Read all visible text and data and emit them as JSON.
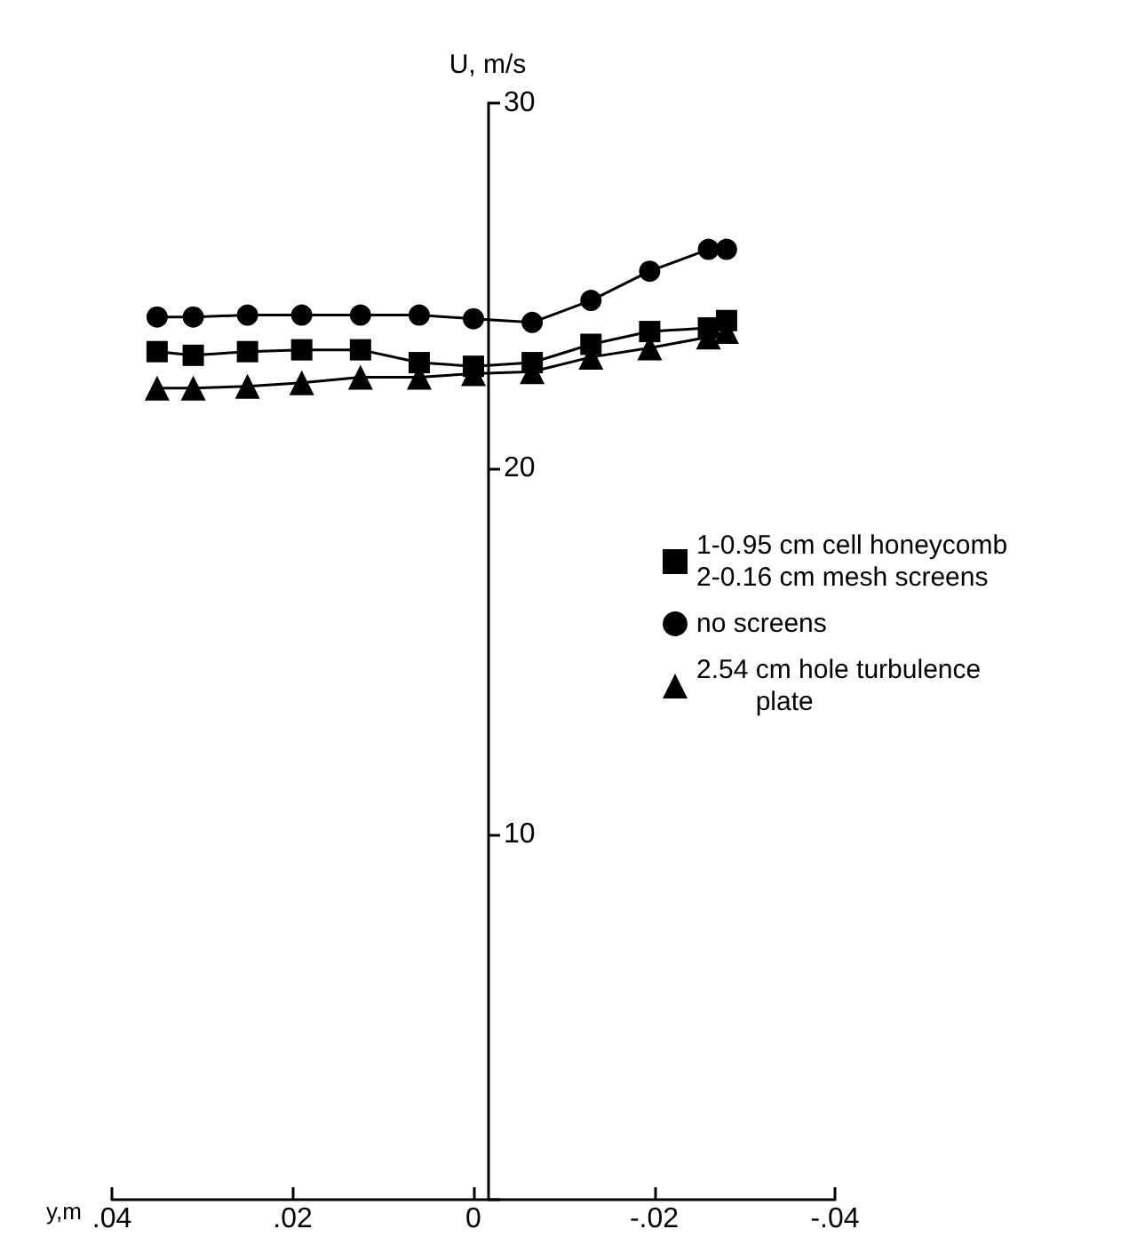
{
  "chart_data": {
    "type": "line",
    "xlabel": "y,m",
    "ylabel": "U, m/s",
    "x": [
      0.035,
      0.031,
      0.025,
      0.019,
      0.0125,
      0.006,
      0,
      -0.0065,
      -0.013,
      -0.0195,
      -0.026,
      -0.028
    ],
    "series": [
      {
        "name": "1-0.95 cm cell honeycomb\n2-0.16 cm mesh screens",
        "color": "#000000",
        "marker": "square",
        "values": [
          23.2,
          23.1,
          23.2,
          23.25,
          23.25,
          22.9,
          22.8,
          22.9,
          23.4,
          23.75,
          23.85,
          24.05
        ]
      },
      {
        "name": "no screens",
        "color": "#000000",
        "marker": "circle",
        "values": [
          24.15,
          24.15,
          24.2,
          24.2,
          24.2,
          24.2,
          24.1,
          24.0,
          24.6,
          25.4,
          26.0,
          26.0
        ]
      },
      {
        "name": "2.54 cm hole turbulence\n        plate",
        "color": "#000000",
        "marker": "triangle",
        "values": [
          22.2,
          22.2,
          22.25,
          22.35,
          22.5,
          22.5,
          22.6,
          22.65,
          23.05,
          23.3,
          23.6,
          23.75
        ]
      }
    ],
    "xlim": [
      0.04,
      -0.04
    ],
    "xticks": [
      {
        "value": 0.04,
        "label": ".04"
      },
      {
        "value": 0.02,
        "label": ".02"
      },
      0,
      {
        "value": -0.02,
        "label": "-.02"
      },
      {
        "value": -0.04,
        "label": "-.04"
      }
    ],
    "ylim": [
      0,
      30
    ],
    "yticks": [
      {
        "value": 0,
        "label": null
      },
      10,
      20,
      30
    ],
    "legend": "right",
    "line_style": "solid"
  }
}
